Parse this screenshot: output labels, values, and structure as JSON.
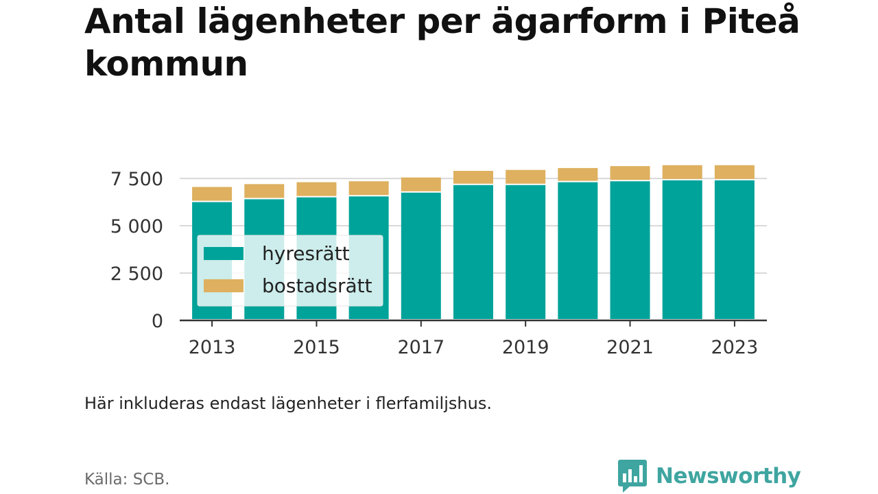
{
  "title": "Antal lägenheter per ägarform i Piteå kommun",
  "note": "Här inkluderas endast lägenheter i flerfamiljshus.",
  "source": "Källa: SCB.",
  "brand": {
    "name": "Newsworthy",
    "icon": "bar-chart-speech-bubble-icon",
    "color": "#3fa5a0"
  },
  "chart_data": {
    "type": "bar",
    "stacked": true,
    "categories": [
      "2013",
      "2014",
      "2015",
      "2016",
      "2017",
      "2018",
      "2019",
      "2020",
      "2021",
      "2022",
      "2023"
    ],
    "x_tick_labels": [
      "2013",
      "2015",
      "2017",
      "2019",
      "2021",
      "2023"
    ],
    "series": [
      {
        "name": "hyresrätt",
        "color": "#00a39a",
        "values": [
          6250,
          6400,
          6500,
          6550,
          6750,
          7150,
          7150,
          7300,
          7350,
          7400,
          7400
        ]
      },
      {
        "name": "bostadsrätt",
        "color": "#deb05f",
        "values": [
          800,
          800,
          800,
          800,
          800,
          750,
          800,
          750,
          800,
          800,
          800
        ]
      }
    ],
    "y_ticks": [
      0,
      2500,
      5000,
      7500
    ],
    "y_tick_labels": [
      "0",
      "2 500",
      "5 000",
      "7 500"
    ],
    "ylim": [
      0,
      8300
    ],
    "grid": "horizontal",
    "legend": {
      "position": "left-middle",
      "entries": [
        "hyresrätt",
        "bostadsrätt"
      ]
    }
  }
}
